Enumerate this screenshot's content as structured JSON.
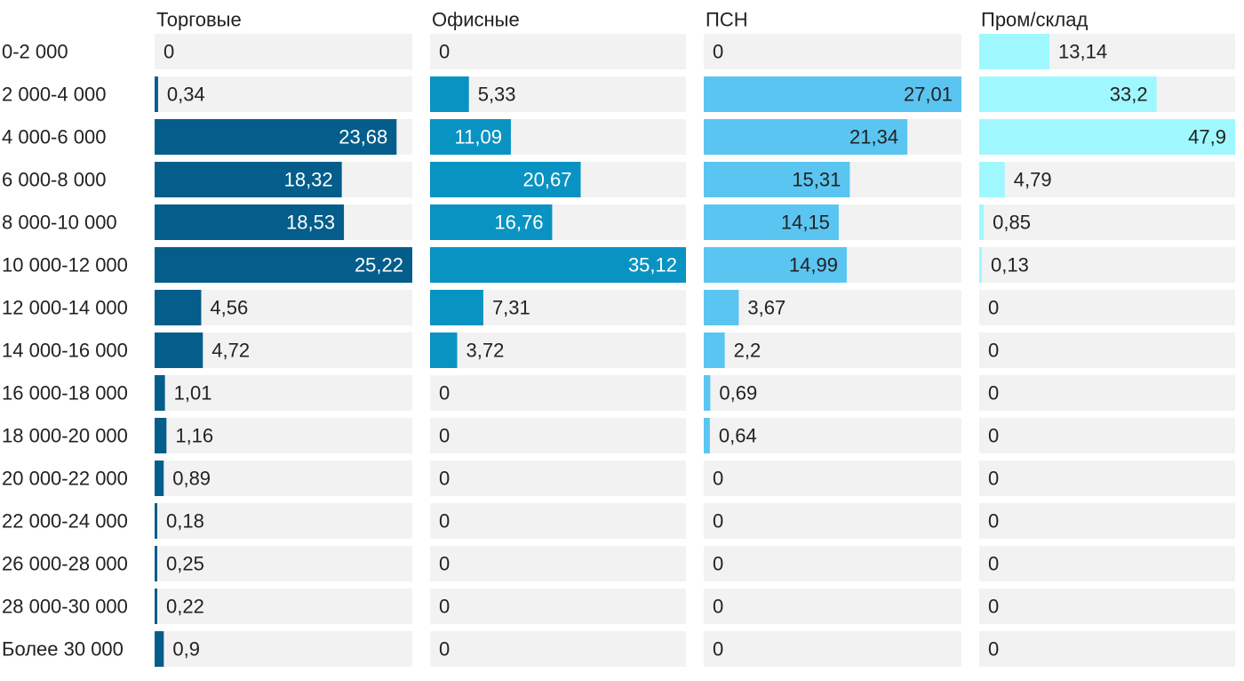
{
  "chart_data": {
    "type": "bar",
    "orientation": "horizontal",
    "layout": "small-multiples",
    "categories": [
      "0-2 000",
      "2 000-4 000",
      "4 000-6 000",
      "6 000-8 000",
      "8 000-10 000",
      "10 000-12 000",
      "12 000-14 000",
      "14 000-16 000",
      "16 000-18 000",
      "18 000-20 000",
      "20 000-22 000",
      "22 000-24 000",
      "26 000-28 000",
      "28 000-30 000",
      "Более 30 000"
    ],
    "series": [
      {
        "name": "Торговые",
        "color": "#045d8a",
        "values": [
          0,
          0.34,
          23.68,
          18.32,
          18.53,
          25.22,
          4.56,
          4.72,
          1.01,
          1.16,
          0.89,
          0.18,
          0.25,
          0.22,
          0.9
        ],
        "labels": [
          "0",
          "0,34",
          "23,68",
          "18,32",
          "18,53",
          "25,22",
          "4,56",
          "4,72",
          "1,01",
          "1,16",
          "0,89",
          "0,18",
          "0,25",
          "0,22",
          "0,9"
        ]
      },
      {
        "name": "Офисные",
        "color": "#0993c2",
        "values": [
          0,
          5.33,
          11.09,
          20.67,
          16.76,
          35.12,
          7.31,
          3.72,
          0,
          0,
          0,
          0,
          0,
          0,
          0
        ],
        "labels": [
          "0",
          "5,33",
          "11,09",
          "20,67",
          "16,76",
          "35,12",
          "7,31",
          "3,72",
          "0",
          "0",
          "0",
          "0",
          "0",
          "0",
          "0"
        ]
      },
      {
        "name": "ПСН",
        "color": "#5bc5f2",
        "values": [
          0,
          27.01,
          21.34,
          15.31,
          14.15,
          14.99,
          3.67,
          2.2,
          0.69,
          0.64,
          0,
          0,
          0,
          0,
          0
        ],
        "labels": [
          "0",
          "27,01",
          "21,34",
          "15,31",
          "14,15",
          "14,99",
          "3,67",
          "2,2",
          "0,69",
          "0,64",
          "0",
          "0",
          "0",
          "0",
          "0"
        ]
      },
      {
        "name": "Пром/склад",
        "color": "#9ff8ff",
        "values": [
          13.14,
          33.2,
          47.9,
          4.79,
          0.85,
          0.13,
          0,
          0,
          0,
          0,
          0,
          0,
          0,
          0,
          0
        ],
        "labels": [
          "13,14",
          "33,2",
          "47,9",
          "4,79",
          "0,85",
          "0,13",
          "0",
          "0",
          "0",
          "0",
          "0",
          "0",
          "0",
          "0",
          "0"
        ]
      }
    ],
    "background_bar_color": "#f2f2f2",
    "grid": false,
    "legend": "none"
  }
}
